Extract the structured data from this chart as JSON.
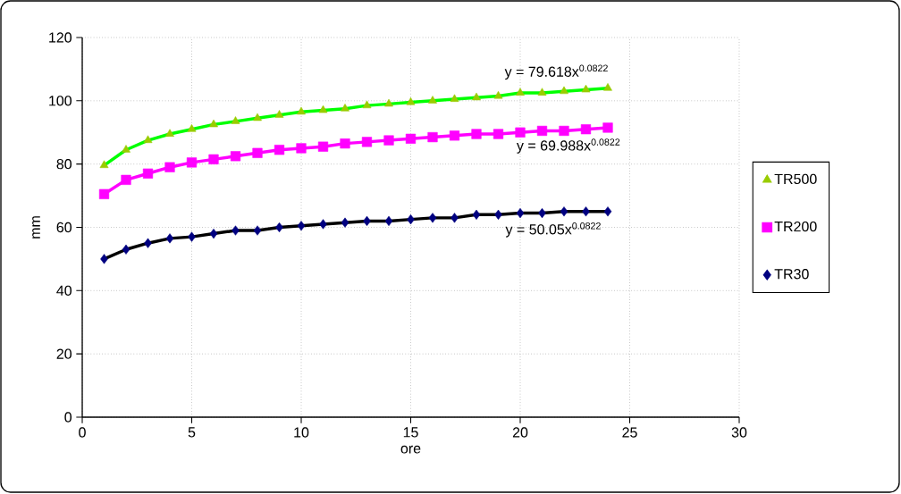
{
  "chart_data": {
    "type": "scatter",
    "xlabel": "ore",
    "ylabel": "mm",
    "x": [
      1,
      2,
      3,
      4,
      5,
      6,
      7,
      8,
      9,
      10,
      11,
      12,
      13,
      14,
      15,
      16,
      17,
      18,
      19,
      20,
      21,
      22,
      23,
      24
    ],
    "xlim": [
      0,
      30
    ],
    "xticks": [
      0,
      5,
      10,
      15,
      20,
      25,
      30
    ],
    "ylim": [
      0,
      120
    ],
    "yticks": [
      0,
      20,
      40,
      60,
      80,
      100,
      120
    ],
    "grid": true,
    "legend": "right",
    "series": [
      {
        "type": "line",
        "color": "#00ff00",
        "values": [
          79.6,
          84.5,
          87.5,
          89.5,
          91,
          92.5,
          93.5,
          94.5,
          95.5,
          96.5,
          97,
          97.5,
          98.5,
          99,
          99.5,
          100,
          100.5,
          101,
          101.5,
          102.5,
          102.5,
          103,
          103.5,
          104
        ]
      },
      {
        "type": "line",
        "color": "#ff00ff",
        "values": [
          70.5,
          75,
          77,
          79,
          80.5,
          81.5,
          82.5,
          83.5,
          84.5,
          85,
          85.5,
          86.5,
          87,
          87.5,
          88,
          88.5,
          89,
          89.5,
          89.5,
          90,
          90.5,
          90.5,
          91,
          91.5
        ]
      },
      {
        "type": "line",
        "color": "#000000",
        "values": [
          50,
          53,
          55,
          56.5,
          57,
          58,
          59,
          59,
          60,
          60.5,
          61,
          61.5,
          62,
          62,
          62.5,
          63,
          63,
          64,
          64,
          64.5,
          64.5,
          65,
          65,
          65
        ]
      },
      {
        "name": "TR500",
        "color": "#99cc00",
        "marker": "triangle",
        "values": [
          79.6,
          84.5,
          87.5,
          89.5,
          91,
          92.5,
          93.5,
          94.5,
          95.5,
          96.5,
          97,
          97.5,
          98.5,
          99,
          99.5,
          100,
          100.5,
          101,
          101.5,
          102.5,
          102.5,
          103,
          103.5,
          104
        ]
      },
      {
        "name": "TR200",
        "color": "#ff00ff",
        "marker": "square",
        "values": [
          70.5,
          75,
          77,
          79,
          80.5,
          81.5,
          82.5,
          83.5,
          84.5,
          85,
          85.5,
          86.5,
          87,
          87.5,
          88,
          88.5,
          89,
          89.5,
          89.5,
          90,
          90.5,
          90.5,
          91,
          91.5
        ]
      },
      {
        "name": "TR30",
        "color": "#000080",
        "marker": "diamond",
        "values": [
          50,
          53,
          55,
          56.5,
          57,
          58,
          59,
          59,
          60,
          60.5,
          61,
          61.5,
          62,
          62,
          62.5,
          63,
          63,
          64,
          64,
          64.5,
          64.5,
          65,
          65,
          65
        ]
      }
    ],
    "annotations": [
      "y = 79.618x$^{0.0822}$",
      "y = 69.988x$^{0.0822}$",
      "y = 50.05x$^{0.0822}$"
    ]
  }
}
